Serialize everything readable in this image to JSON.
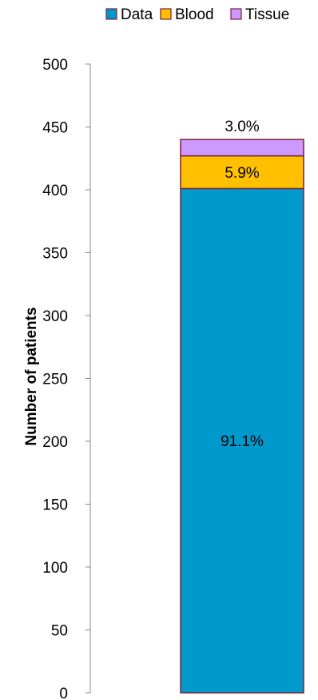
{
  "chart_data": {
    "type": "bar",
    "stacked": true,
    "title": "",
    "xlabel": "",
    "ylabel": "Number of patients",
    "ylim": [
      0,
      500
    ],
    "yticks": [
      0,
      50,
      100,
      150,
      200,
      250,
      300,
      350,
      400,
      450,
      500
    ],
    "categories": [
      ""
    ],
    "grid": false,
    "legend_position": "top",
    "series": [
      {
        "name": "Data",
        "values": [
          401
        ],
        "color": "#0099CC",
        "label": "91.1%"
      },
      {
        "name": "Blood",
        "values": [
          26
        ],
        "color": "#FFC000",
        "label": "5.9%"
      },
      {
        "name": "Tissue",
        "values": [
          13
        ],
        "color": "#CC99FF",
        "label": "3.0%"
      }
    ],
    "bar_edge_color": "#7B1E3A"
  }
}
